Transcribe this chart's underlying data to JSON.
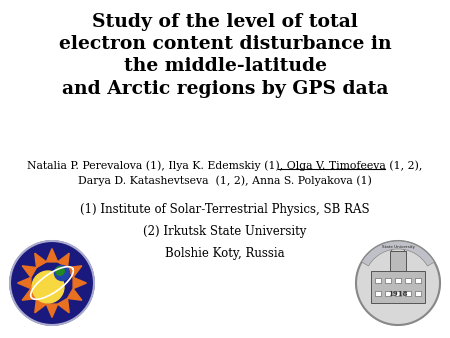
{
  "title_line1": "Study of the level of total",
  "title_line2": "electron content disturbance in",
  "title_line3": "the middle-latitude",
  "title_line4": "and Arctic regions by GPS data",
  "authors_line1_plain": "Natalia P. Perevalova (1), Ilya K. Edemskiy (1), ",
  "authors_line1_underline": "Olga V. Timofeeva (1, 2)",
  "authors_line1_after": ",",
  "authors_line2": "Darya D. Katashevtseva  (1, 2), Anna S. Polyakova (1)",
  "inst1": "(1) Institute of Solar-Terrestrial Physics, SB RAS",
  "inst2": "(2) Irkutsk State University",
  "inst3": "Bolshie Koty, Russia",
  "bg_color": "#ffffff",
  "title_color": "#000000",
  "text_color": "#000000",
  "title_fontsize": 13.5,
  "authors_fontsize": 7.8,
  "inst_fontsize": 8.5
}
